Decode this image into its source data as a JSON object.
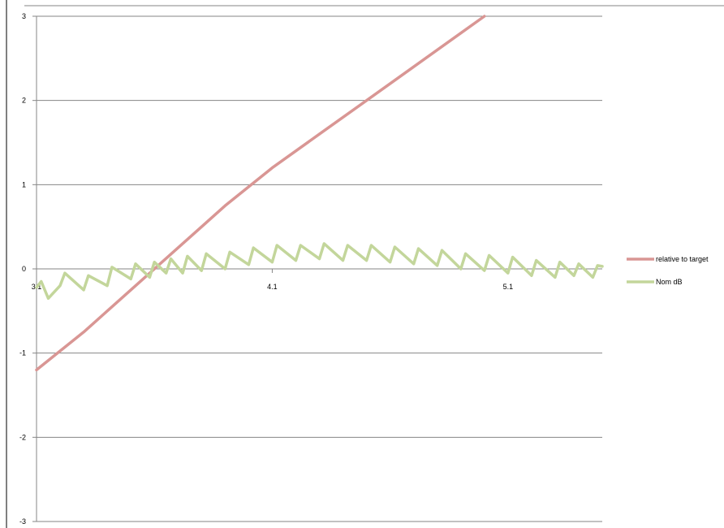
{
  "chart_data": {
    "type": "line",
    "title": "",
    "xlabel": "",
    "ylabel": "",
    "xlim": [
      3.1,
      5.5
    ],
    "ylim": [
      -3,
      3
    ],
    "x_ticks": [
      "3.1",
      "4.1",
      "5.1"
    ],
    "y_ticks": [
      "3",
      "2",
      "1",
      "0",
      "-1",
      "-2",
      "-3"
    ],
    "grid": "horizontal",
    "legend_position": "right",
    "series": [
      {
        "name": "relative to target",
        "color": "#d99694",
        "x": [
          3.1,
          3.3,
          3.5,
          3.7,
          3.9,
          4.1,
          4.3,
          4.5,
          4.7,
          4.9,
          5.0
        ],
        "y": [
          -1.2,
          -0.75,
          -0.25,
          0.25,
          0.75,
          1.2,
          1.6,
          2.0,
          2.4,
          2.8,
          3.0
        ]
      },
      {
        "name": "Nom dB",
        "color": "#c3d69b",
        "x": [
          3.1,
          3.12,
          3.15,
          3.2,
          3.22,
          3.3,
          3.32,
          3.4,
          3.42,
          3.5,
          3.52,
          3.58,
          3.6,
          3.65,
          3.67,
          3.72,
          3.74,
          3.8,
          3.82,
          3.9,
          3.92,
          4.0,
          4.02,
          4.1,
          4.12,
          4.2,
          4.22,
          4.3,
          4.32,
          4.4,
          4.42,
          4.5,
          4.52,
          4.6,
          4.62,
          4.7,
          4.72,
          4.8,
          4.82,
          4.9,
          4.92,
          5.0,
          5.02,
          5.1,
          5.12,
          5.2,
          5.22,
          5.3,
          5.32,
          5.38,
          5.4,
          5.46,
          5.48,
          5.5
        ],
        "y": [
          -0.22,
          -0.15,
          -0.35,
          -0.2,
          -0.05,
          -0.25,
          -0.08,
          -0.2,
          0.02,
          -0.12,
          0.06,
          -0.1,
          0.08,
          -0.05,
          0.12,
          -0.05,
          0.15,
          -0.02,
          0.18,
          0.0,
          0.2,
          0.05,
          0.25,
          0.08,
          0.28,
          0.1,
          0.28,
          0.12,
          0.3,
          0.1,
          0.28,
          0.1,
          0.28,
          0.08,
          0.26,
          0.06,
          0.24,
          0.04,
          0.22,
          0.0,
          0.18,
          -0.02,
          0.16,
          -0.05,
          0.14,
          -0.08,
          0.1,
          -0.1,
          0.08,
          -0.08,
          0.06,
          -0.1,
          0.04,
          0.03
        ]
      }
    ]
  }
}
